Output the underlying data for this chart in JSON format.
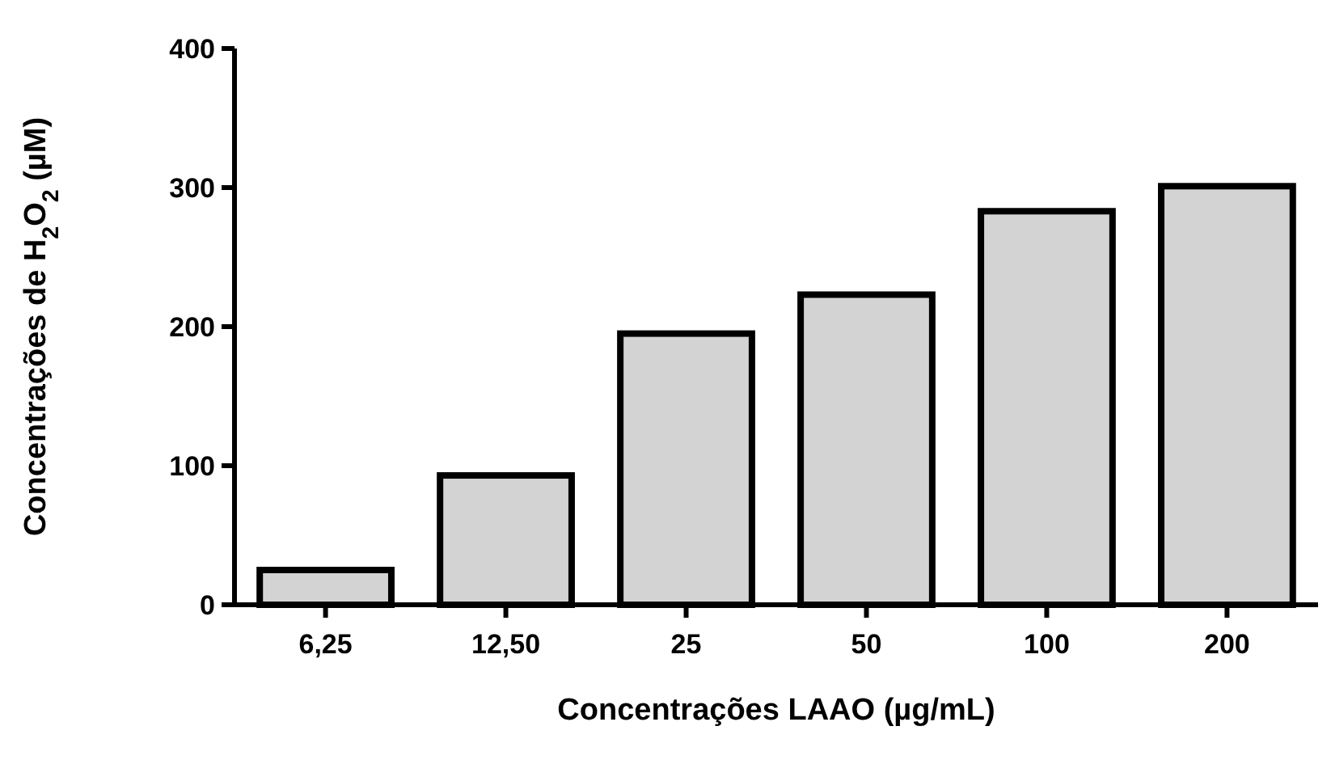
{
  "chart_data": {
    "type": "bar",
    "xlabel": "Concentrações LAAO (µg/mL)",
    "ylabel": "Concentrações de H$_{2}$O$_{2}$ (µM)",
    "categories": [
      "6,25",
      "12,50",
      "25",
      "50",
      "100",
      "200"
    ],
    "values": [
      25,
      93,
      195,
      223,
      283,
      301
    ],
    "color": "#d3d3d3",
    "ylim": [
      0,
      400
    ],
    "yticks": [
      0,
      100,
      200,
      300,
      400
    ],
    "grid": false
  }
}
